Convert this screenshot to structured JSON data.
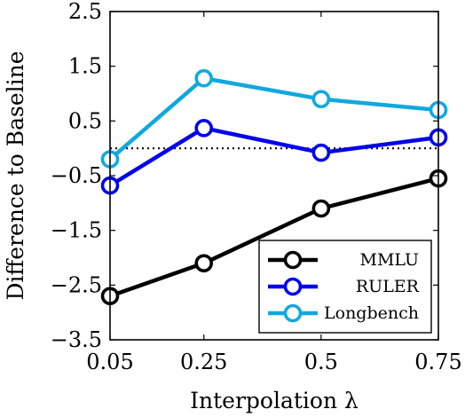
{
  "chart_data": {
    "type": "line",
    "xlabel": "Interpolation λ",
    "ylabel": "Difference to Baseline",
    "x": [
      0.05,
      0.25,
      0.5,
      0.75
    ],
    "x_tick_labels": [
      "0.05",
      "0.25",
      "0.5",
      "0.75"
    ],
    "ylim": [
      -3.5,
      2.5
    ],
    "y_ticks": [
      2.5,
      1.5,
      0.5,
      -0.5,
      -1.5,
      -2.5,
      -3.5
    ],
    "y_tick_labels": [
      "2.5",
      "1.5",
      "0.5",
      "−0.5",
      "−1.5",
      "−2.5",
      "−3.5"
    ],
    "baseline": 0,
    "baseline_style": "dotted",
    "grid": false,
    "legend_position": "bottom-right",
    "series": [
      {
        "name": "MMLU",
        "color": "#000000",
        "values": [
          -2.7,
          -2.1,
          -1.1,
          -0.55
        ]
      },
      {
        "name": "RULER",
        "color": "#0000ee",
        "values": [
          -0.68,
          0.37,
          -0.08,
          0.2
        ]
      },
      {
        "name": "Longbench",
        "color": "#10a8e0",
        "values": [
          -0.2,
          1.28,
          0.9,
          0.7
        ]
      }
    ]
  }
}
